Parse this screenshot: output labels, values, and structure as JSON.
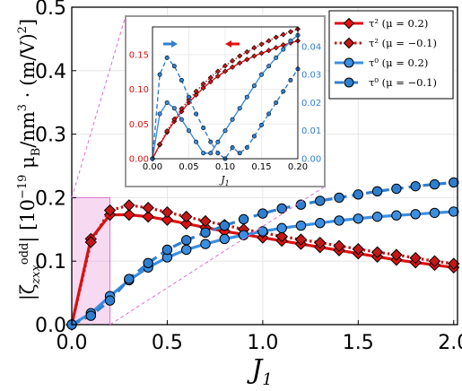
{
  "chart_data": [
    {
      "type": "line",
      "xlabel": "J₁",
      "ylabel": "|ζ^odd_zxx| [10⁻¹⁹ μB/nm³ · (m/V)²]",
      "xlim": [
        0,
        2.02
      ],
      "ylim": [
        0,
        0.5
      ],
      "xticks": [
        "0.0",
        "0.5",
        "1.0",
        "1.5",
        "2.0"
      ],
      "yticks": [
        "0.0",
        "0.1",
        "0.2",
        "0.3",
        "0.4",
        "0.5"
      ],
      "grid": true,
      "legend_position": "top-right",
      "highlight_region": {
        "x": [
          0,
          0.2
        ],
        "y": [
          0,
          0.2
        ]
      },
      "x": [
        0,
        0.1,
        0.2,
        0.3,
        0.4,
        0.5,
        0.6,
        0.7,
        0.8,
        0.9,
        1.0,
        1.1,
        1.2,
        1.3,
        1.4,
        1.5,
        1.6,
        1.7,
        1.8,
        1.9,
        2.0
      ],
      "series": [
        {
          "name": "τ² (μ = 0.2)",
          "color": "#e01010",
          "marker": "diamond",
          "dash": "solid",
          "values": [
            0.0,
            0.135,
            0.173,
            0.173,
            0.17,
            0.165,
            0.159,
            0.153,
            0.147,
            0.142,
            0.137,
            0.132,
            0.127,
            0.122,
            0.117,
            0.112,
            0.107,
            0.102,
            0.098,
            0.094,
            0.09
          ]
        },
        {
          "name": "τ² (μ = −0.1)",
          "color": "#c41818",
          "marker": "diamond",
          "dash": "dotted",
          "values": [
            0.0,
            0.13,
            0.18,
            0.188,
            0.184,
            0.177,
            0.17,
            0.163,
            0.157,
            0.15,
            0.145,
            0.139,
            0.134,
            0.129,
            0.124,
            0.119,
            0.114,
            0.11,
            0.105,
            0.1,
            0.096
          ]
        },
        {
          "name": "τ⁰ (μ = 0.2)",
          "color": "#3b8ee0",
          "marker": "circle",
          "dash": "solid",
          "values": [
            0.0,
            0.018,
            0.045,
            0.07,
            0.09,
            0.106,
            0.118,
            0.127,
            0.135,
            0.141,
            0.147,
            0.152,
            0.156,
            0.16,
            0.164,
            0.167,
            0.17,
            0.172,
            0.174,
            0.176,
            0.178
          ]
        },
        {
          "name": "τ⁰ (μ = −0.1)",
          "color": "#2f7fd0",
          "marker": "circle",
          "dash": "dashed",
          "values": [
            0.0,
            0.014,
            0.038,
            0.072,
            0.097,
            0.118,
            0.133,
            0.145,
            0.156,
            0.166,
            0.175,
            0.183,
            0.189,
            0.195,
            0.2,
            0.205,
            0.21,
            0.214,
            0.218,
            0.221,
            0.224
          ]
        }
      ]
    },
    {
      "type": "line",
      "xlabel": "J₁",
      "xlim": [
        0,
        0.2
      ],
      "ylim_left": [
        0,
        0.19
      ],
      "ylim_right": [
        0,
        0.047
      ],
      "xticks": [
        "0.00",
        "0.05",
        "0.10",
        "0.15",
        "0.20"
      ],
      "yticks_left": [
        "0.00",
        "0.05",
        "0.10",
        "0.15"
      ],
      "yticks_right": [
        "0.00",
        "0.01",
        "0.02",
        "0.03",
        "0.04"
      ],
      "grid": true,
      "x": [
        0,
        0.01,
        0.02,
        0.03,
        0.04,
        0.05,
        0.06,
        0.07,
        0.08,
        0.09,
        0.1,
        0.11,
        0.12,
        0.13,
        0.14,
        0.15,
        0.16,
        0.17,
        0.18,
        0.19,
        0.2
      ],
      "series": [
        {
          "name": "τ² (μ = 0.2)",
          "axis": "left",
          "color": "#e01010",
          "marker": "diamond",
          "dash": "solid",
          "values": [
            0.0,
            0.02,
            0.038,
            0.054,
            0.068,
            0.081,
            0.092,
            0.102,
            0.111,
            0.119,
            0.126,
            0.132,
            0.138,
            0.143,
            0.148,
            0.152,
            0.156,
            0.16,
            0.164,
            0.167,
            0.17
          ]
        },
        {
          "name": "τ² (μ = −0.1)",
          "axis": "left",
          "color": "#c41818",
          "marker": "diamond",
          "dash": "dotted",
          "values": [
            0.0,
            0.021,
            0.04,
            0.057,
            0.072,
            0.085,
            0.097,
            0.108,
            0.117,
            0.126,
            0.134,
            0.141,
            0.148,
            0.154,
            0.16,
            0.165,
            0.17,
            0.175,
            0.179,
            0.183,
            0.187
          ]
        },
        {
          "name": "τ⁰ (μ = 0.2)",
          "axis": "right",
          "color": "#3b8ee0",
          "marker": "circle",
          "dash": "solid",
          "values": [
            0.0,
            0.016,
            0.02,
            0.018,
            0.014,
            0.01,
            0.006,
            0.002,
            0.002,
            0.006,
            0.01,
            0.014,
            0.018,
            0.022,
            0.026,
            0.03,
            0.033,
            0.036,
            0.039,
            0.042,
            0.044
          ]
        },
        {
          "name": "τ⁰ (μ = −0.1)",
          "axis": "right",
          "color": "#2f7fd0",
          "marker": "circle",
          "dash": "dashed",
          "values": [
            0.0,
            0.03,
            0.036,
            0.033,
            0.028,
            0.022,
            0.016,
            0.011,
            0.006,
            0.002,
            0.0,
            0.004,
            0.002,
            0.004,
            0.008,
            0.012,
            0.016,
            0.02,
            0.024,
            0.028,
            0.032
          ]
        }
      ]
    }
  ]
}
